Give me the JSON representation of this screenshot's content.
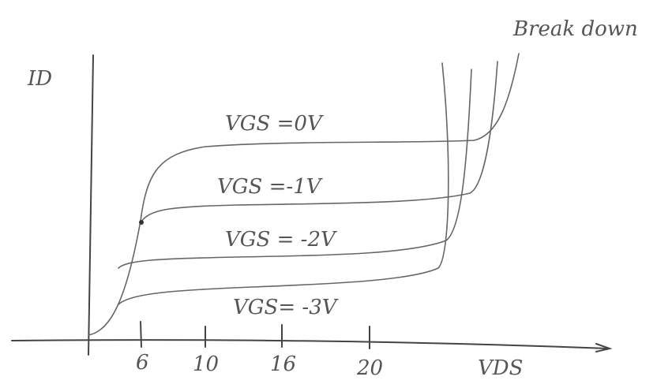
{
  "title": "Break down",
  "y_axis_label": "ID",
  "x_axis_label": "VDS",
  "x_tick_labels": [
    "6",
    "10",
    "16",
    "20"
  ],
  "curve_labels": [
    "VGS =0V",
    "VGS =-1V",
    "VGS = -2V",
    "VGS= -3V"
  ]
}
